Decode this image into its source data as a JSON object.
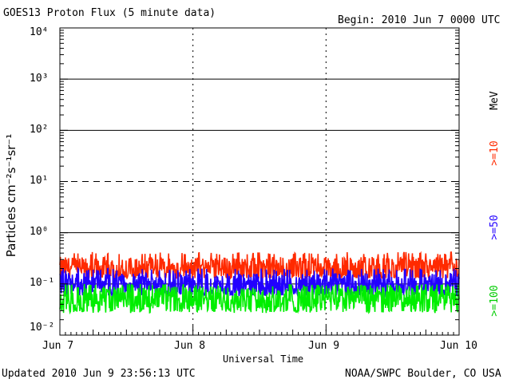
{
  "header": {
    "title": "GOES13 Proton Flux (5 minute data)",
    "begin": "Begin: 2010 Jun 7 0000 UTC"
  },
  "footer": {
    "updated": "Updated 2010 Jun  9 23:56:13 UTC",
    "credit": "NOAA/SWPC Boulder, CO USA"
  },
  "chart_data": {
    "type": "line",
    "title": "GOES13 Proton Flux (5 minute data)",
    "xlabel": "Universal Time",
    "ylabel": "Particles cm⁻²s⁻¹sr⁻¹",
    "y_scale": "log",
    "ylim": [
      0.01,
      10000
    ],
    "y_ticks": [
      "10⁻²",
      "10⁻¹",
      "10⁰",
      "10¹",
      "10²",
      "10³",
      "10⁴"
    ],
    "x_ticks": [
      "Jun 7",
      "Jun 8",
      "Jun 9",
      "Jun 10"
    ],
    "x_range_days": [
      0,
      3
    ],
    "reference_levels": [
      {
        "value": 1000,
        "style": "solid"
      },
      {
        "value": 100,
        "style": "solid"
      },
      {
        "value": 10,
        "style": "dashed"
      },
      {
        "value": 1,
        "style": "solid"
      },
      {
        "value": 0.1,
        "style": "solid"
      }
    ],
    "unit_label": "MeV",
    "series": [
      {
        "name": ">=10",
        "color": "#ff2a00",
        "baseline": 0.2,
        "low": 0.13,
        "high": 0.42
      },
      {
        "name": ">=50",
        "color": "#2200ff",
        "baseline": 0.095,
        "low": 0.06,
        "high": 0.2
      },
      {
        "name": ">=100",
        "color": "#00ee00",
        "baseline": 0.05,
        "low": 0.027,
        "high": 0.1
      }
    ]
  }
}
